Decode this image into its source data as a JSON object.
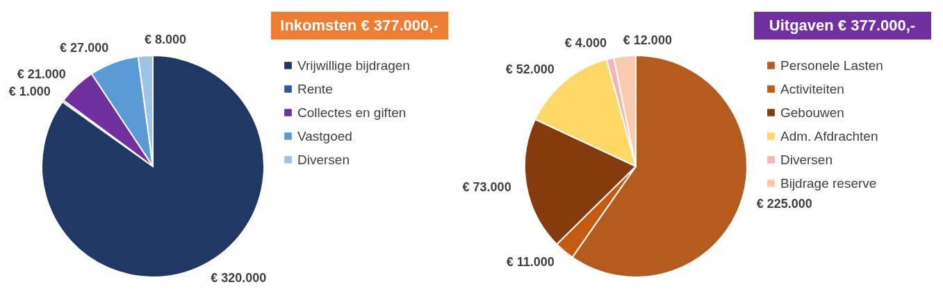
{
  "chart_data": [
    {
      "type": "pie",
      "title": "Inkomsten € 377.000,-",
      "categories": [
        "Vrijwillige bijdragen",
        "Rente",
        "Collectes en giften",
        "Vastgoed",
        "Diversen"
      ],
      "values": [
        320000,
        1000,
        21000,
        27000,
        8000
      ],
      "colors": [
        "#1f3864",
        "#2e5c9a",
        "#7030a0",
        "#5b9bd5",
        "#9dc3e6"
      ],
      "value_labels": [
        "€ 320.000",
        "€ 1.000",
        "€ 21.000",
        "€ 27.000",
        "€ 8.000"
      ],
      "legend": "right"
    },
    {
      "type": "pie",
      "title": "Uitgaven € 377.000,-",
      "categories": [
        "Personele Lasten",
        "Activiteiten",
        "Gebouwen",
        "Adm. Afdrachten",
        "Diversen",
        "Bijdrage reserve"
      ],
      "values": [
        225000,
        11000,
        73000,
        52000,
        4000,
        12000
      ],
      "colors": [
        "#b35c1e",
        "#c55a11",
        "#843c0c",
        "#ffd966",
        "#f4b6b6",
        "#f8cbad"
      ],
      "value_labels": [
        "€ 225.000",
        "€ 11.000",
        "€ 73.000",
        "€ 52.000",
        "€ 4.000",
        "€ 12.000"
      ],
      "legend": "right"
    }
  ]
}
